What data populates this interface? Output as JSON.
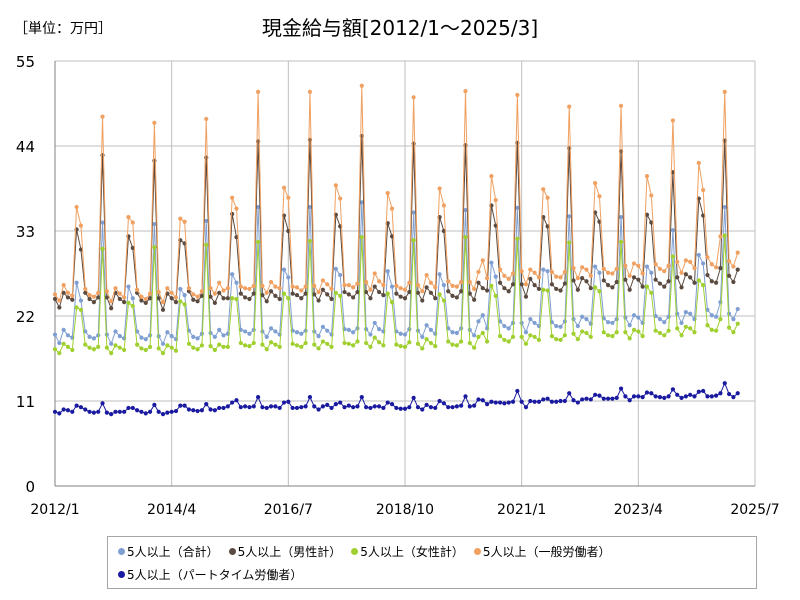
{
  "header": {
    "unit_label": "［単位：万円］",
    "title": "現金給与額[2012/1～2025/3]"
  },
  "colors": {
    "total": "#7f9fd2",
    "male": "#5b4a3f",
    "female": "#a0d030",
    "general": "#f0a060",
    "parttime": "#1a1aa0",
    "grid": "#bfbfbf",
    "axis": "#808080"
  },
  "chart_data": {
    "type": "line",
    "title": "現金給与額[2012/1～2025/3]",
    "unit": "［単位：万円］",
    "ylim": [
      0,
      55
    ],
    "yticks": [
      0,
      11,
      22,
      33,
      44,
      55
    ],
    "xticks": [
      "2012/1",
      "2014/4",
      "2016/7",
      "2018/10",
      "2021/1",
      "2023/4",
      "2025/7"
    ],
    "xtick_months": [
      0,
      27,
      54,
      81,
      108,
      135,
      162
    ],
    "x_range_months": [
      0,
      162
    ],
    "grid": true,
    "legend_position": "bottom",
    "x_start": "2012/1",
    "x_end": "2025/3",
    "series": [
      {
        "name": "5人以上（合計）",
        "key": "total",
        "values": [
          19.6,
          18.5,
          20.2,
          19.5,
          19.2,
          26.3,
          24.0,
          20.0,
          19.3,
          19.1,
          19.5,
          34.1,
          19.6,
          18.4,
          20.0,
          19.4,
          19.1,
          25.8,
          24.3,
          20.0,
          19.2,
          19.0,
          19.5,
          33.9,
          19.4,
          18.4,
          19.9,
          19.4,
          19.0,
          25.5,
          24.7,
          20.1,
          19.3,
          19.1,
          19.7,
          34.3,
          19.8,
          19.3,
          20.2,
          19.5,
          19.7,
          27.4,
          26.3,
          20.2,
          20.0,
          19.7,
          20.2,
          36.1,
          20.0,
          19.3,
          20.4,
          20.0,
          19.6,
          28.0,
          27.0,
          20.1,
          19.9,
          19.7,
          20.1,
          36.1,
          20.0,
          19.4,
          20.6,
          20.1,
          19.6,
          28.1,
          27.3,
          20.3,
          20.2,
          19.9,
          20.4,
          36.7,
          20.3,
          19.6,
          21.1,
          20.3,
          20.0,
          27.8,
          25.8,
          20.0,
          19.7,
          19.6,
          20.3,
          35.4,
          20.1,
          19.3,
          20.8,
          20.2,
          19.7,
          27.4,
          26.0,
          20.4,
          19.9,
          19.8,
          20.4,
          35.7,
          20.2,
          19.5,
          21.3,
          22.1,
          20.4,
          28.9,
          27.1,
          21.3,
          20.7,
          20.4,
          21.1,
          36.0,
          21.1,
          19.9,
          21.6,
          21.1,
          20.7,
          28.0,
          27.8,
          21.2,
          20.7,
          20.6,
          21.3,
          34.9,
          21.6,
          20.7,
          21.9,
          21.6,
          21.0,
          28.4,
          27.6,
          21.7,
          21.2,
          21.1,
          21.6,
          34.8,
          21.8,
          20.8,
          22.1,
          21.8,
          21.1,
          28.4,
          27.6,
          22.0,
          21.6,
          21.2,
          21.9,
          33.1,
          22.3,
          21.1,
          22.5,
          22.3,
          21.6,
          29.9,
          28.8,
          22.8,
          22.1,
          21.9,
          23.8,
          36.1,
          22.3,
          21.6,
          22.9
        ]
      },
      {
        "name": "5人以上（男性計）",
        "key": "male",
        "values": [
          24.2,
          23.1,
          25.0,
          24.4,
          24.1,
          33.2,
          30.6,
          25.0,
          24.2,
          23.8,
          24.4,
          42.8,
          24.4,
          23.0,
          25.0,
          24.2,
          23.8,
          32.3,
          30.8,
          25.0,
          24.0,
          23.7,
          24.3,
          42.1,
          24.3,
          22.8,
          24.9,
          24.3,
          23.8,
          31.8,
          31.4,
          25.2,
          24.1,
          23.9,
          24.6,
          42.5,
          24.5,
          23.7,
          25.0,
          24.3,
          24.3,
          35.2,
          32.2,
          24.9,
          24.4,
          24.2,
          24.9,
          44.6,
          24.7,
          23.9,
          25.2,
          24.6,
          24.2,
          35.0,
          33.0,
          24.9,
          24.7,
          24.3,
          24.9,
          44.8,
          24.8,
          24.0,
          25.4,
          24.8,
          24.2,
          35.1,
          33.6,
          25.1,
          24.8,
          24.4,
          25.1,
          45.3,
          25.1,
          24.3,
          25.8,
          25.1,
          24.7,
          34.0,
          32.3,
          24.9,
          24.5,
          24.3,
          25.1,
          44.3,
          25.0,
          24.0,
          25.7,
          25.0,
          24.3,
          34.8,
          33.0,
          25.2,
          24.6,
          24.4,
          25.2,
          44.1,
          24.9,
          24.1,
          26.3,
          25.6,
          25.3,
          36.3,
          33.7,
          26.3,
          25.6,
          25.2,
          26.1,
          44.4,
          26.1,
          24.5,
          26.8,
          26.0,
          25.5,
          34.8,
          33.6,
          26.1,
          25.5,
          25.3,
          26.2,
          43.7,
          26.6,
          25.4,
          26.9,
          26.5,
          25.6,
          35.4,
          34.2,
          26.6,
          26.0,
          25.7,
          26.4,
          43.3,
          26.7,
          25.4,
          27.0,
          26.7,
          25.8,
          35.1,
          34.1,
          26.7,
          26.2,
          25.8,
          26.5,
          40.6,
          27.0,
          25.7,
          27.4,
          27.0,
          26.3,
          37.2,
          35.0,
          27.3,
          26.5,
          26.3,
          28.2,
          44.7,
          27.2,
          26.4,
          28.0
        ]
      },
      {
        "name": "5人以上（女性計）",
        "key": "female",
        "values": [
          17.7,
          17.2,
          18.4,
          18.0,
          17.6,
          23.1,
          22.8,
          18.3,
          17.9,
          17.7,
          18.0,
          30.7,
          17.9,
          17.2,
          18.2,
          17.9,
          17.6,
          23.7,
          23.3,
          18.3,
          17.8,
          17.6,
          18.0,
          30.9,
          17.8,
          17.2,
          18.2,
          17.9,
          17.5,
          23.9,
          23.5,
          18.4,
          17.9,
          17.7,
          18.2,
          31.2,
          18.1,
          17.6,
          18.3,
          18.0,
          18.0,
          24.3,
          24.2,
          18.5,
          18.2,
          18.1,
          18.5,
          31.6,
          18.3,
          17.7,
          18.6,
          18.3,
          18.0,
          24.9,
          24.3,
          18.4,
          18.2,
          18.0,
          18.5,
          31.7,
          18.3,
          17.8,
          18.7,
          18.4,
          18.0,
          25.0,
          24.6,
          18.5,
          18.4,
          18.2,
          18.7,
          32.2,
          18.5,
          18.0,
          19.2,
          18.6,
          18.2,
          24.9,
          23.8,
          18.3,
          18.1,
          18.0,
          18.6,
          31.8,
          18.4,
          17.8,
          19.0,
          18.5,
          18.1,
          24.8,
          24.0,
          18.7,
          18.3,
          18.2,
          18.7,
          32.2,
          18.5,
          17.9,
          19.3,
          19.8,
          18.7,
          25.9,
          24.6,
          19.4,
          18.9,
          18.7,
          19.3,
          32.0,
          19.3,
          18.4,
          19.5,
          19.3,
          18.9,
          25.4,
          25.3,
          19.4,
          19.0,
          18.9,
          19.5,
          31.5,
          19.7,
          19.0,
          20.0,
          19.8,
          19.3,
          25.7,
          25.2,
          19.9,
          19.5,
          19.4,
          19.9,
          31.6,
          19.9,
          19.1,
          20.2,
          20.0,
          19.4,
          25.8,
          25.0,
          20.1,
          19.8,
          19.5,
          20.1,
          29.7,
          20.4,
          19.5,
          20.6,
          20.4,
          19.9,
          26.6,
          26.0,
          20.8,
          20.2,
          20.1,
          21.6,
          32.4,
          20.5,
          19.9,
          21.0
        ]
      },
      {
        "name": "5人以上（一般労働者）",
        "key": "general",
        "values": [
          24.8,
          24.0,
          26.0,
          25.0,
          24.6,
          36.1,
          33.7,
          25.5,
          24.7,
          24.5,
          25.0,
          47.8,
          25.2,
          23.9,
          25.6,
          24.9,
          24.4,
          34.8,
          34.1,
          25.4,
          24.5,
          24.2,
          24.9,
          47.0,
          25.1,
          23.8,
          25.6,
          25.0,
          24.4,
          34.6,
          34.2,
          25.6,
          24.8,
          24.5,
          25.2,
          47.5,
          25.6,
          24.9,
          26.3,
          25.3,
          25.6,
          37.3,
          35.9,
          25.8,
          25.6,
          25.5,
          25.9,
          51.0,
          25.9,
          25.0,
          26.4,
          25.8,
          25.6,
          38.6,
          37.3,
          25.8,
          25.7,
          25.3,
          25.8,
          51.0,
          25.9,
          25.1,
          26.6,
          26.1,
          25.5,
          38.9,
          37.2,
          26.0,
          26.0,
          25.7,
          26.2,
          51.8,
          26.4,
          25.4,
          27.5,
          26.5,
          26.0,
          37.9,
          35.9,
          25.9,
          25.6,
          25.4,
          26.3,
          50.3,
          26.0,
          25.2,
          27.3,
          26.3,
          25.7,
          38.5,
          36.3,
          26.5,
          25.9,
          25.8,
          26.4,
          51.1,
          26.4,
          25.5,
          27.7,
          29.2,
          26.9,
          40.1,
          37.0,
          28.0,
          27.2,
          26.8,
          27.5,
          50.6,
          27.8,
          26.1,
          28.0,
          27.6,
          27.0,
          38.4,
          37.3,
          27.7,
          27.1,
          27.0,
          27.7,
          49.1,
          28.2,
          26.9,
          28.3,
          28.0,
          27.2,
          39.2,
          37.5,
          28.1,
          27.6,
          27.5,
          28.1,
          49.2,
          28.5,
          27.2,
          28.8,
          28.5,
          27.5,
          40.1,
          37.6,
          28.7,
          28.1,
          27.8,
          28.5,
          47.3,
          29.0,
          27.6,
          29.2,
          29.0,
          28.2,
          41.8,
          38.3,
          29.6,
          28.7,
          28.3,
          32.3,
          51.0,
          29.1,
          28.4,
          30.2
        ]
      },
      {
        "name": "5人以上（パートタイム労働者）",
        "key": "parttime",
        "values": [
          9.6,
          9.4,
          9.9,
          9.8,
          9.6,
          10.4,
          10.2,
          9.9,
          9.6,
          9.5,
          9.6,
          10.7,
          9.5,
          9.3,
          9.6,
          9.6,
          9.6,
          10.1,
          10.1,
          9.8,
          9.6,
          9.4,
          9.6,
          10.5,
          9.6,
          9.3,
          9.5,
          9.6,
          9.7,
          10.4,
          10.4,
          9.9,
          9.8,
          9.7,
          9.8,
          10.6,
          9.9,
          9.8,
          10.1,
          10.1,
          10.3,
          10.8,
          11.1,
          10.2,
          10.3,
          10.2,
          10.3,
          11.5,
          10.2,
          10.1,
          10.3,
          10.3,
          10.1,
          10.8,
          10.9,
          10.1,
          10.1,
          10.2,
          10.3,
          11.5,
          10.3,
          9.9,
          10.3,
          10.5,
          10.1,
          10.6,
          10.8,
          10.2,
          10.4,
          10.2,
          10.3,
          11.5,
          10.2,
          10.1,
          10.3,
          10.3,
          10.1,
          10.8,
          10.6,
          10.1,
          10.0,
          10.0,
          10.2,
          11.4,
          10.2,
          9.9,
          10.5,
          10.2,
          10.1,
          11.0,
          10.7,
          10.2,
          10.2,
          10.3,
          10.4,
          11.6,
          10.3,
          10.4,
          11.2,
          11.1,
          10.6,
          10.9,
          10.8,
          10.8,
          10.7,
          10.8,
          10.9,
          12.3,
          10.9,
          10.2,
          11.0,
          10.9,
          10.9,
          11.2,
          11.3,
          10.9,
          10.9,
          11.0,
          11.0,
          12.0,
          11.1,
          10.8,
          11.2,
          11.3,
          11.2,
          11.8,
          11.7,
          11.3,
          11.3,
          11.3,
          11.4,
          12.6,
          11.6,
          11.1,
          11.6,
          11.6,
          11.5,
          12.1,
          12.0,
          11.6,
          11.5,
          11.4,
          11.6,
          12.5,
          11.8,
          11.4,
          11.6,
          11.8,
          11.6,
          12.2,
          12.3,
          11.6,
          11.6,
          11.7,
          12.0,
          13.3,
          11.9,
          11.5,
          12.0
        ]
      }
    ]
  }
}
